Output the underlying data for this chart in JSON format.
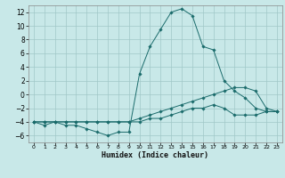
{
  "xlabel": "Humidex (Indice chaleur)",
  "xlim": [
    -0.5,
    23.5
  ],
  "ylim": [
    -7,
    13
  ],
  "yticks": [
    -6,
    -4,
    -2,
    0,
    2,
    4,
    6,
    8,
    10,
    12
  ],
  "xticks": [
    0,
    1,
    2,
    3,
    4,
    5,
    6,
    7,
    8,
    9,
    10,
    11,
    12,
    13,
    14,
    15,
    16,
    17,
    18,
    19,
    20,
    21,
    22,
    23
  ],
  "background_color": "#c8e8e8",
  "line_color": "#1a6b6b",
  "grid_color": "#a0c8c8",
  "series": [
    {
      "x": [
        0,
        1,
        2,
        3,
        4,
        5,
        6,
        7,
        8,
        9,
        10,
        11,
        12,
        13,
        14,
        15,
        16,
        17,
        18,
        19,
        20,
        21,
        22,
        23
      ],
      "y": [
        -4,
        -4.5,
        -4,
        -4.5,
        -4.5,
        -5,
        -5.5,
        -6,
        -5.5,
        -5.5,
        3,
        7,
        9.5,
        12,
        12.5,
        11.5,
        7,
        6.5,
        2,
        0.5,
        -0.5,
        -2,
        -2.5,
        -2.5
      ]
    },
    {
      "x": [
        0,
        1,
        2,
        3,
        4,
        5,
        6,
        7,
        8,
        9,
        10,
        11,
        12,
        13,
        14,
        15,
        16,
        17,
        18,
        19,
        20,
        21,
        22,
        23
      ],
      "y": [
        -4,
        -4,
        -4,
        -4,
        -4,
        -4,
        -4,
        -4,
        -4,
        -4,
        -3.5,
        -3,
        -2.5,
        -2,
        -1.5,
        -1,
        -0.5,
        0,
        0.5,
        1,
        1,
        0.5,
        -2,
        -2.5
      ]
    },
    {
      "x": [
        0,
        1,
        2,
        3,
        4,
        5,
        6,
        7,
        8,
        9,
        10,
        11,
        12,
        13,
        14,
        15,
        16,
        17,
        18,
        19,
        20,
        21,
        22,
        23
      ],
      "y": [
        -4,
        -4,
        -4,
        -4,
        -4,
        -4,
        -4,
        -4,
        -4,
        -4,
        -4,
        -3.5,
        -3.5,
        -3,
        -2.5,
        -2,
        -2,
        -1.5,
        -2,
        -3,
        -3,
        -3,
        -2.5,
        -2.5
      ]
    }
  ]
}
